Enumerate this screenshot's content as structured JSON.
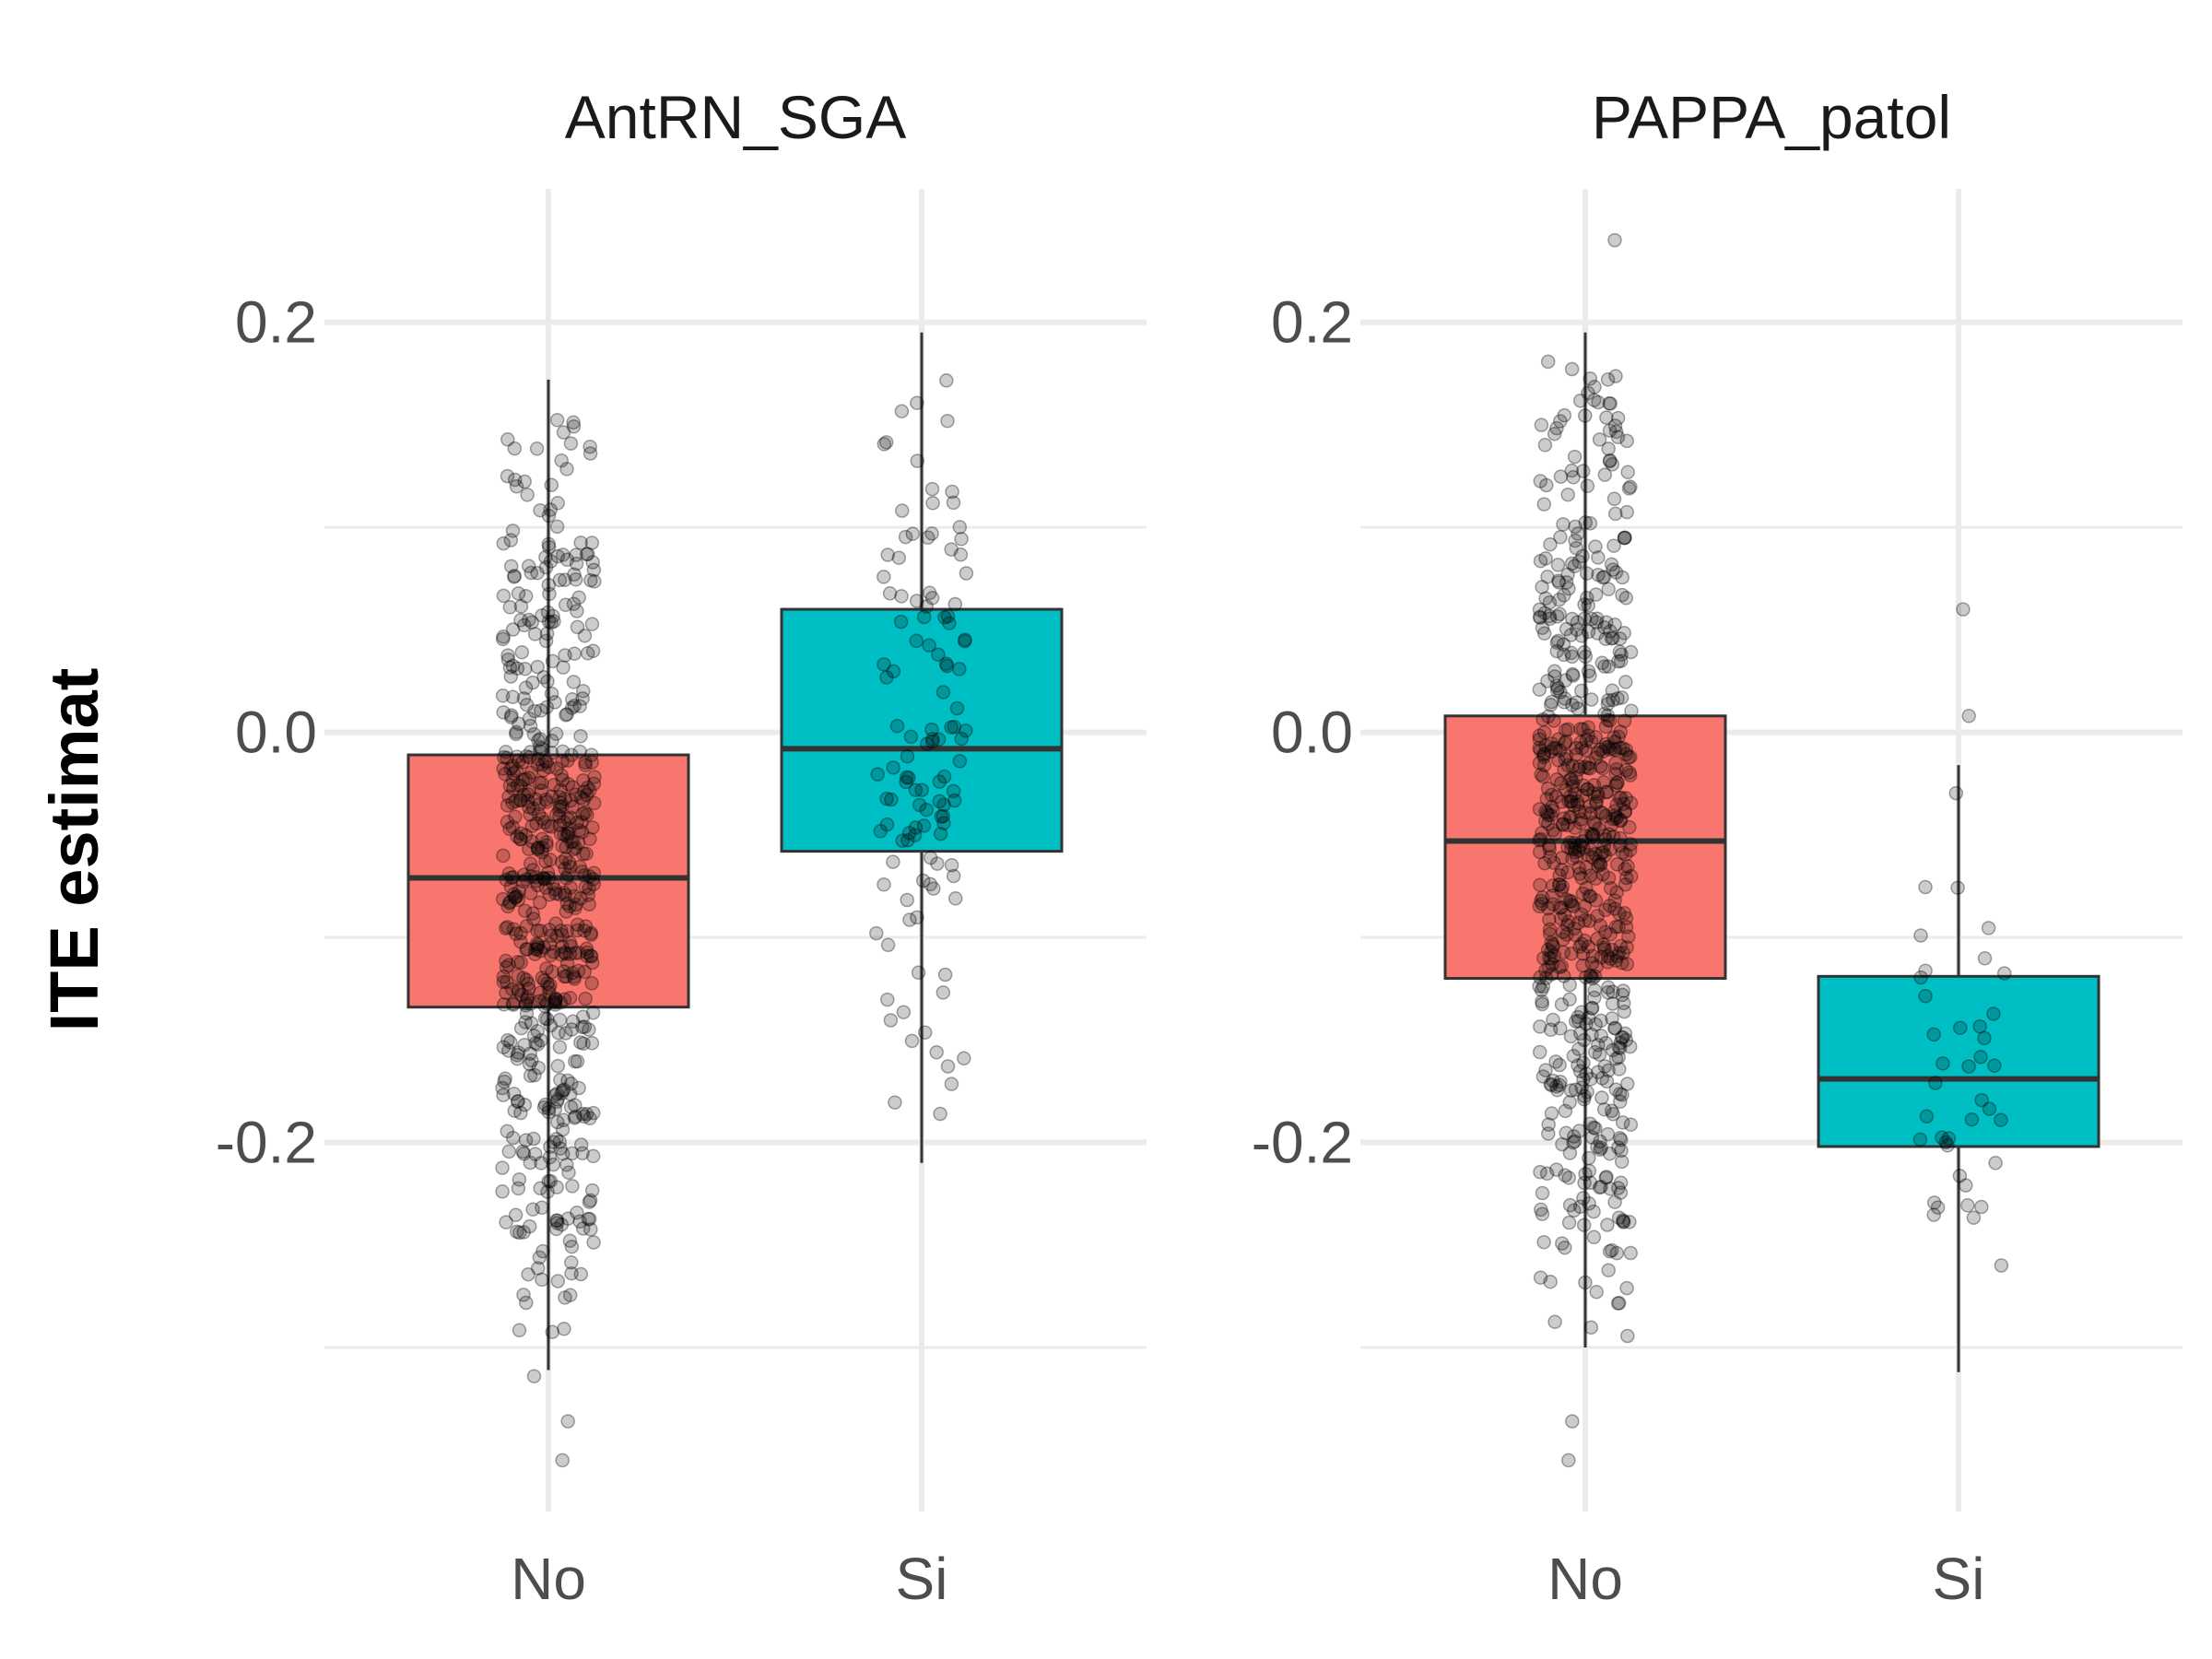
{
  "chart_data": {
    "type": "box",
    "ylabel": "ITE estimat",
    "ylim": [
      -0.38,
      0.265
    ],
    "y_ticks": [
      0.2,
      0.0,
      -0.2
    ],
    "y_tick_labels": [
      "0.2",
      "0.0",
      "-0.2"
    ],
    "y_minor_gridlines": [
      0.1,
      -0.1,
      -0.3
    ],
    "grid": true,
    "point_color": "#000000",
    "point_alpha": 0.2,
    "panels": [
      {
        "title": "AntRN_SGA",
        "categories": [
          "No",
          "Si"
        ],
        "boxes": [
          {
            "category": "No",
            "fill": "#F8766D",
            "q1": -0.134,
            "median": -0.071,
            "q3": -0.011,
            "whisker_low": -0.311,
            "whisker_high": 0.172,
            "outliers": [
              -0.314,
              -0.336,
              -0.355
            ],
            "jitter_n": 620
          },
          {
            "category": "Si",
            "fill": "#00BFC4",
            "q1": -0.058,
            "median": -0.008,
            "q3": 0.06,
            "whisker_low": -0.21,
            "whisker_high": 0.195,
            "outliers": [],
            "jitter_n": 120
          }
        ]
      },
      {
        "title": "PAPPA_patol",
        "categories": [
          "No",
          "Si"
        ],
        "boxes": [
          {
            "category": "No",
            "fill": "#F8766D",
            "q1": -0.12,
            "median": -0.053,
            "q3": 0.008,
            "whisker_low": -0.3,
            "whisker_high": 0.195,
            "outliers": [
              0.24,
              -0.336,
              -0.355
            ],
            "jitter_n": 700
          },
          {
            "category": "Si",
            "fill": "#00BFC4",
            "q1": -0.202,
            "median": -0.169,
            "q3": -0.119,
            "whisker_low": -0.312,
            "whisker_high": -0.016,
            "outliers": [
              0.06,
              0.008
            ],
            "jitter_n": 40
          }
        ]
      }
    ]
  }
}
